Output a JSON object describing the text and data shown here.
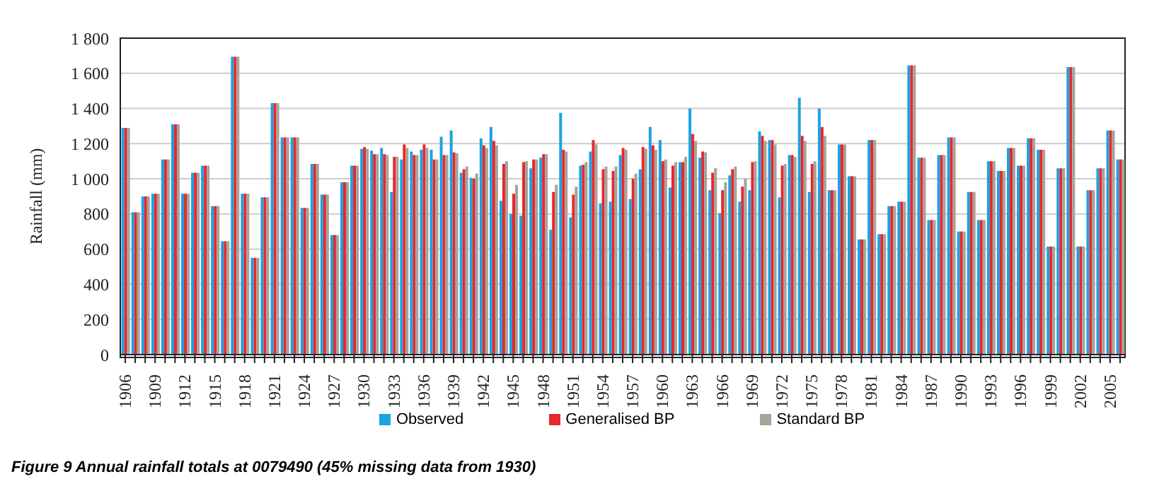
{
  "chart_data": {
    "type": "bar",
    "title": "Figure 9 Annual rainfall totals at 0079490 (45% missing data from 1930)",
    "ylabel": "Rainfall (mm)",
    "categories": [
      "1906",
      null,
      null,
      "1909",
      null,
      null,
      "1912",
      null,
      null,
      "1915",
      null,
      null,
      "1918",
      null,
      null,
      "1921",
      null,
      null,
      "1924",
      null,
      null,
      "1927",
      null,
      null,
      "1930",
      null,
      null,
      "1933",
      null,
      null,
      "1936",
      null,
      null,
      "1939",
      null,
      null,
      "1942",
      null,
      null,
      "1945",
      null,
      null,
      "1948",
      null,
      null,
      "1951",
      null,
      null,
      "1954",
      null,
      null,
      "1957",
      null,
      null,
      "1960",
      null,
      null,
      "1963",
      null,
      null,
      "1966",
      null,
      null,
      "1969",
      null,
      null,
      "1972",
      null,
      null,
      "1975",
      null,
      null,
      "1978",
      null,
      null,
      "1981",
      null,
      null,
      "1984",
      null,
      null,
      "1987",
      null,
      null,
      "1990",
      null,
      null,
      "1993",
      null,
      null,
      "1996",
      null,
      null,
      "1999",
      null,
      null,
      "2002",
      null,
      null,
      "2005",
      null
    ],
    "series": [
      {
        "name": "Observed",
        "color": "#1aa3e0",
        "values": [
          1290,
          810,
          900,
          915,
          1110,
          1310,
          915,
          1035,
          1075,
          845,
          645,
          1695,
          915,
          550,
          895,
          1430,
          1235,
          1235,
          835,
          1085,
          910,
          680,
          980,
          1075,
          1170,
          1160,
          1175,
          925,
          1110,
          1155,
          1165,
          1165,
          1240,
          1275,
          1035,
          1005,
          1230,
          1295,
          875,
          800,
          790,
          1060,
          1120,
          710,
          1375,
          780,
          1075,
          1155,
          860,
          870,
          1135,
          885,
          1055,
          1295,
          1220,
          950,
          1095,
          1400,
          1120,
          935,
          805,
          1020,
          870,
          935,
          1270,
          1220,
          895,
          1135,
          1460,
          925,
          1400,
          935,
          1195,
          1015,
          655,
          1220,
          685,
          845,
          870,
          1645,
          1120,
          765,
          1135,
          1235,
          700,
          925,
          765,
          1100,
          1045,
          1175,
          1075,
          1230,
          1165,
          615,
          1060,
          1635,
          615,
          935,
          1060,
          1275,
          1110
        ]
      },
      {
        "name": "Generalised BP",
        "color": "#e8272e",
        "values": [
          1290,
          810,
          900,
          915,
          1110,
          1310,
          915,
          1035,
          1075,
          845,
          645,
          1695,
          915,
          550,
          895,
          1430,
          1235,
          1235,
          835,
          1085,
          910,
          680,
          980,
          1075,
          1180,
          1140,
          1140,
          1125,
          1195,
          1135,
          1195,
          1110,
          1135,
          1150,
          1055,
          1000,
          1190,
          1215,
          1085,
          915,
          1095,
          1110,
          1140,
          925,
          1165,
          910,
          1080,
          1220,
          1055,
          1045,
          1175,
          1000,
          1180,
          1190,
          1100,
          1075,
          1095,
          1255,
          1155,
          1035,
          935,
          1055,
          955,
          1095,
          1245,
          1220,
          1075,
          1135,
          1245,
          1085,
          1295,
          935,
          1195,
          1015,
          655,
          1220,
          685,
          845,
          870,
          1645,
          1120,
          765,
          1135,
          1235,
          700,
          925,
          765,
          1100,
          1045,
          1175,
          1075,
          1230,
          1165,
          615,
          1060,
          1635,
          615,
          935,
          1060,
          1275,
          1110
        ]
      },
      {
        "name": "Standard BP",
        "color": "#a6a39a",
        "values": [
          1290,
          810,
          900,
          915,
          1110,
          1310,
          915,
          1035,
          1075,
          845,
          645,
          1695,
          915,
          550,
          895,
          1430,
          1235,
          1235,
          835,
          1085,
          910,
          680,
          980,
          1075,
          1170,
          1140,
          1135,
          1125,
          1175,
          1135,
          1175,
          1110,
          1135,
          1145,
          1070,
          1030,
          1175,
          1190,
          1100,
          965,
          1100,
          1110,
          1140,
          965,
          1155,
          955,
          1095,
          1195,
          1070,
          1070,
          1165,
          1030,
          1170,
          1165,
          1110,
          1095,
          1125,
          1215,
          1150,
          1060,
          980,
          1070,
          1000,
          1100,
          1215,
          1195,
          1085,
          1125,
          1215,
          1100,
          1245,
          935,
          1195,
          1015,
          655,
          1220,
          685,
          845,
          870,
          1645,
          1120,
          765,
          1135,
          1235,
          700,
          925,
          765,
          1100,
          1045,
          1175,
          1075,
          1230,
          1165,
          615,
          1060,
          1635,
          615,
          935,
          1060,
          1275,
          1110
        ]
      }
    ],
    "ylim": [
      0,
      1800
    ],
    "yticks": [
      0,
      200,
      400,
      600,
      800,
      {
        "value": 1000,
        "label": "1 000"
      },
      {
        "value": 1200,
        "label": "1 200"
      },
      {
        "value": 1400,
        "label": "1 400"
      },
      {
        "value": 1600,
        "label": "1 600"
      },
      {
        "value": 1800,
        "label": "1 800"
      }
    ],
    "grid": "y",
    "legend": "bottom"
  }
}
